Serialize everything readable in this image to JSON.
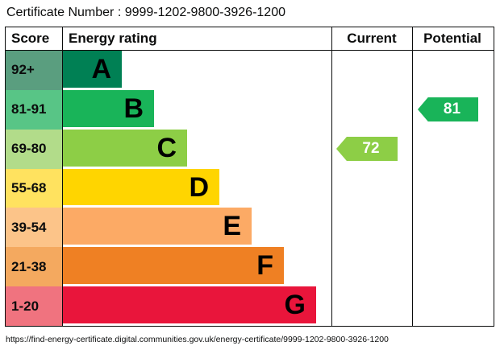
{
  "title": "Certificate Number : 9999-1202-9800-3926-1200",
  "table": {
    "headers": {
      "score": "Score",
      "rating": "Energy rating",
      "current": "Current",
      "potential": "Potential"
    },
    "bands": [
      {
        "score": "92+",
        "letter": "A",
        "color": "#008054",
        "tint": "#5a9e7f"
      },
      {
        "score": "81-91",
        "letter": "B",
        "color": "#19b459",
        "tint": "#58c586"
      },
      {
        "score": "69-80",
        "letter": "C",
        "color": "#8dce46",
        "tint": "#b2dc8a"
      },
      {
        "score": "55-68",
        "letter": "D",
        "color": "#ffd500",
        "tint": "#ffe25f"
      },
      {
        "score": "39-54",
        "letter": "E",
        "color": "#fcaa65",
        "tint": "#fcc489"
      },
      {
        "score": "21-38",
        "letter": "F",
        "color": "#ef8023",
        "tint": "#f4a95f"
      },
      {
        "score": "1-20",
        "letter": "G",
        "color": "#e9153b",
        "tint": "#f0737f"
      }
    ]
  },
  "current": {
    "value": "72",
    "color": "#8dce46"
  },
  "potential": {
    "value": "81",
    "color": "#19b459"
  },
  "footer_url": "https://find-energy-certificate.digital.communities.gov.uk/energy-certificate/9999-1202-9800-3926-1200",
  "chart_data": {
    "type": "bar",
    "title": "Energy rating",
    "categories": [
      "A",
      "B",
      "C",
      "D",
      "E",
      "F",
      "G"
    ],
    "score_ranges": [
      "92+",
      "81-91",
      "69-80",
      "55-68",
      "39-54",
      "21-38",
      "1-20"
    ],
    "band_colors": [
      "#008054",
      "#19b459",
      "#8dce46",
      "#ffd500",
      "#fcaa65",
      "#ef8023",
      "#e9153b"
    ],
    "values": [
      74,
      114,
      155,
      195,
      235,
      275,
      315
    ],
    "current_rating": {
      "value": 72,
      "band": "C"
    },
    "potential_rating": {
      "value": 81,
      "band": "B"
    },
    "legend_position": "none",
    "grid": false
  }
}
